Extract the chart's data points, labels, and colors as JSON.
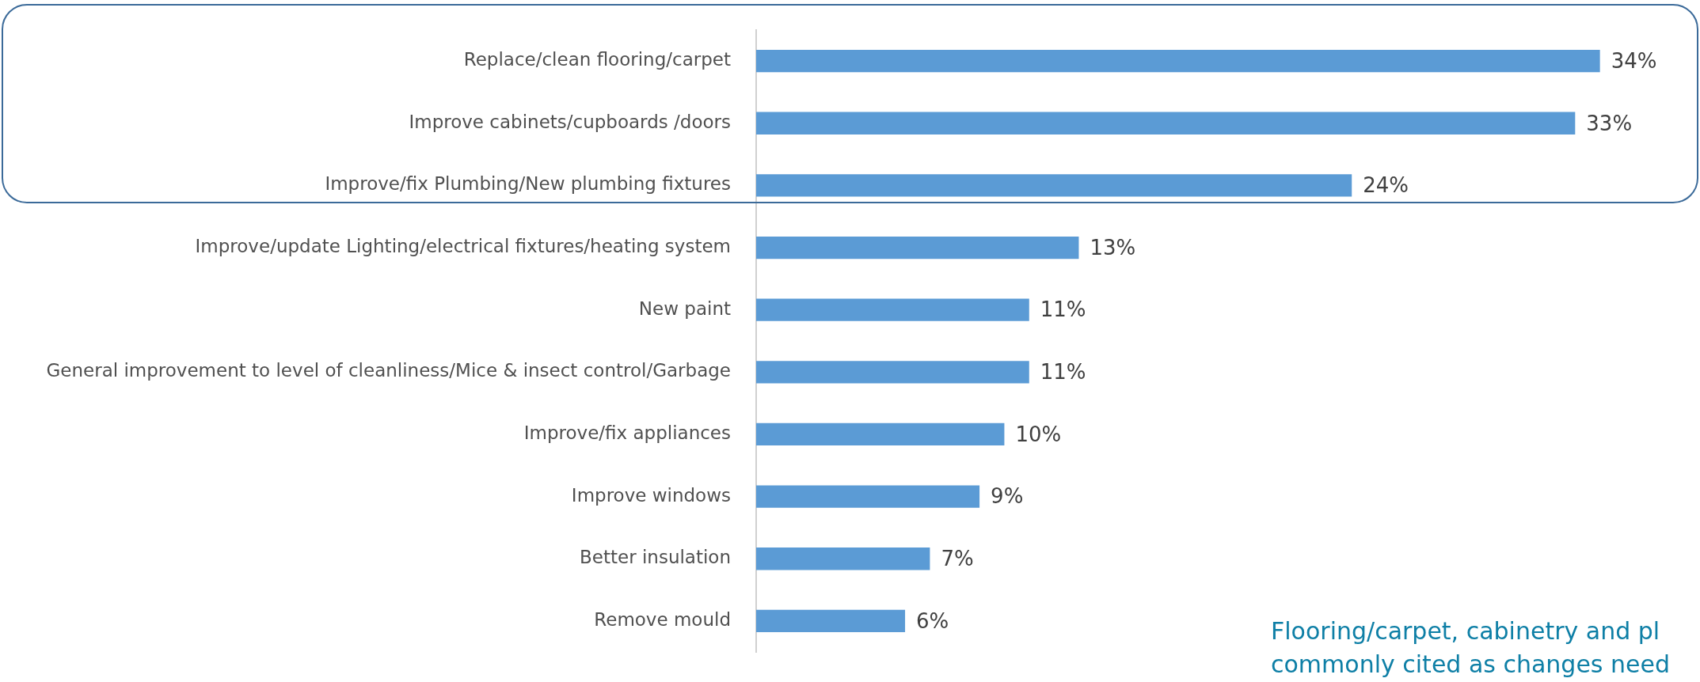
{
  "chart_data": {
    "type": "bar",
    "orientation": "horizontal",
    "categories": [
      "Replace/clean flooring/carpet",
      "Improve cabinets/cupboards /doors",
      "Improve/fix Plumbing/New plumbing fixtures",
      "Improve/update Lighting/electrical fixtures/heating system",
      "New paint",
      "General improvement to level of cleanliness/Mice & insect control/Garbage",
      "Improve/fix appliances",
      "Improve windows",
      "Better insulation",
      "Remove mould"
    ],
    "values": [
      34,
      33,
      24,
      13,
      11,
      11,
      10,
      9,
      7,
      6
    ],
    "value_labels": [
      "34%",
      "33%",
      "24%",
      "13%",
      "11%",
      "11%",
      "10%",
      "9%",
      "7%",
      "6%"
    ],
    "color": "#5b9bd5",
    "tick_labels": "y",
    "annotations": [
      "Flooring/carpet, cabinetry and pl",
      "commonly cited as changes need"
    ]
  }
}
